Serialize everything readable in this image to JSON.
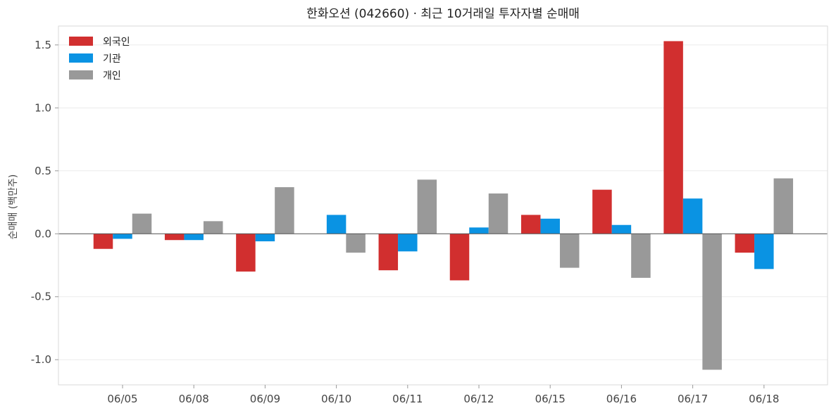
{
  "chart_data": {
    "type": "bar",
    "title": "한화오션 (042660) · 최근 10거래일 투자자별 순매매",
    "xlabel": "",
    "ylabel": "순매매 (백만주)",
    "categories": [
      "06/05",
      "06/08",
      "06/09",
      "06/10",
      "06/11",
      "06/12",
      "06/15",
      "06/16",
      "06/17",
      "06/18"
    ],
    "series": [
      {
        "name": "외국인",
        "color": "#d12f2f",
        "values": [
          -0.12,
          -0.05,
          -0.3,
          0.0,
          -0.29,
          -0.37,
          0.15,
          0.35,
          1.53,
          -0.15
        ]
      },
      {
        "name": "기관",
        "color": "#0a93e3",
        "values": [
          -0.04,
          -0.05,
          -0.06,
          0.15,
          -0.14,
          0.05,
          0.12,
          0.07,
          0.28,
          -0.28
        ]
      },
      {
        "name": "개인",
        "color": "#999999",
        "values": [
          0.16,
          0.1,
          0.37,
          -0.15,
          0.43,
          0.32,
          -0.27,
          -0.35,
          -1.08,
          0.44
        ]
      }
    ],
    "ylim": [
      -1.2,
      1.65
    ],
    "yticks": [
      -1.0,
      -0.5,
      0.0,
      0.5,
      1.0,
      1.5
    ],
    "ytick_labels": [
      "-1.0",
      "-0.5",
      "0.0",
      "0.5",
      "1.0",
      "1.5"
    ],
    "grid": true,
    "legend_position": "top-left"
  }
}
